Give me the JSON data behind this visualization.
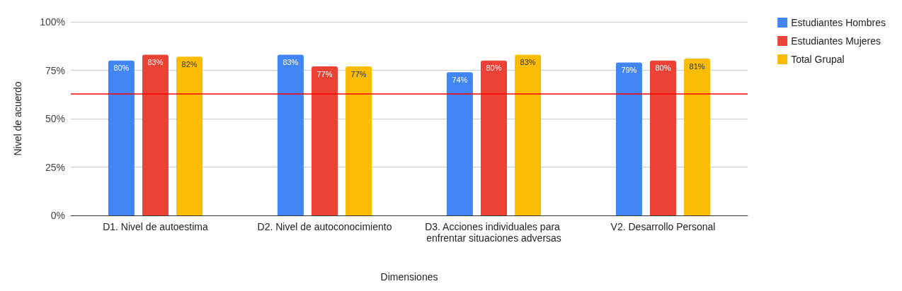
{
  "chart_data": {
    "type": "bar",
    "xlabel": "Dimensiones",
    "ylabel": "Nivel de acuerdo",
    "categories": [
      "D1. Nivel de autoestima",
      "D2. Nivel de autoconocimiento",
      "D3. Acciones individuales para enfrentar situaciones adversas",
      "V2. Desarrollo Personal"
    ],
    "series": [
      {
        "name": "Estudiantes Hombres",
        "color": "#4285f4",
        "values": [
          80,
          83,
          74,
          79
        ],
        "value_labels": [
          "80%",
          "83%",
          "74%",
          "79%"
        ]
      },
      {
        "name": "Estudiantes Mujeres",
        "color": "#ea4335",
        "values": [
          83,
          77,
          80,
          80
        ],
        "value_labels": [
          "83%",
          "77%",
          "80%",
          "80%"
        ]
      },
      {
        "name": "Total Grupal",
        "color": "#fbbc04",
        "values": [
          82,
          77,
          83,
          81
        ],
        "value_labels": [
          "82%",
          "77%",
          "83%",
          "81%"
        ]
      }
    ],
    "ylim": [
      0,
      100
    ],
    "yticks": [
      {
        "value": 0,
        "label": "0%"
      },
      {
        "value": 25,
        "label": "25%"
      },
      {
        "value": 50,
        "label": "50%"
      },
      {
        "value": 75,
        "label": "75%"
      },
      {
        "value": 100,
        "label": "100%"
      }
    ],
    "ref_lines": [
      {
        "axis": "y",
        "value": 63,
        "color": "#ff0000",
        "line_style": "solid"
      }
    ],
    "grid": "y",
    "legend": "top right"
  }
}
